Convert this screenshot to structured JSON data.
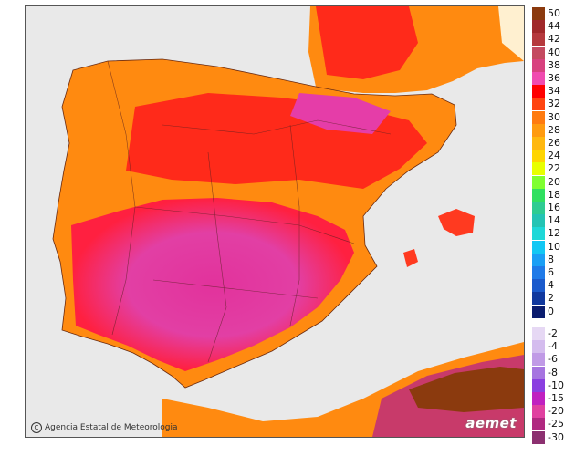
{
  "credit": {
    "icon": "copyright-icon",
    "text": "Agencia Estatal de Meteorologia"
  },
  "logo": {
    "text": "aemet"
  },
  "legend_positive": [
    {
      "label": "50",
      "color": "#8b3a0e"
    },
    {
      "label": "44",
      "color": "#a0282a"
    },
    {
      "label": "42",
      "color": "#b5393d"
    },
    {
      "label": "40",
      "color": "#c44a60"
    },
    {
      "label": "38",
      "color": "#d8427f"
    },
    {
      "label": "36",
      "color": "#f04bb0"
    },
    {
      "label": "34",
      "color": "#ff0000"
    },
    {
      "label": "32",
      "color": "#ff4410"
    },
    {
      "label": "30",
      "color": "#ff7b10"
    },
    {
      "label": "28",
      "color": "#ff9b10"
    },
    {
      "label": "26",
      "color": "#ffb810"
    },
    {
      "label": "24",
      "color": "#ffd500"
    },
    {
      "label": "22",
      "color": "#e8ff00"
    },
    {
      "label": "20",
      "color": "#7fff30"
    },
    {
      "label": "18",
      "color": "#30e060"
    },
    {
      "label": "16",
      "color": "#2ecc92"
    },
    {
      "label": "14",
      "color": "#24c4b4"
    },
    {
      "label": "12",
      "color": "#1ed8d8"
    },
    {
      "label": "10",
      "color": "#12c8f4"
    },
    {
      "label": "8",
      "color": "#1a9ff5"
    },
    {
      "label": "6",
      "color": "#1f7ae8"
    },
    {
      "label": "4",
      "color": "#1a5acc"
    },
    {
      "label": "2",
      "color": "#10389e"
    },
    {
      "label": "0",
      "color": "#0a1c6e"
    }
  ],
  "legend_negative": [
    {
      "label": "-2",
      "color": "#e6d8f4"
    },
    {
      "label": "-4",
      "color": "#d4bcee"
    },
    {
      "label": "-6",
      "color": "#c09ae6"
    },
    {
      "label": "-8",
      "color": "#a674e0"
    },
    {
      "label": "-10",
      "color": "#8a3fe0"
    },
    {
      "label": "-15",
      "color": "#c020c0"
    },
    {
      "label": "-20",
      "color": "#e040a0"
    },
    {
      "label": "-25",
      "color": "#b02880"
    },
    {
      "label": "-30",
      "color": "#8c3070"
    }
  ]
}
